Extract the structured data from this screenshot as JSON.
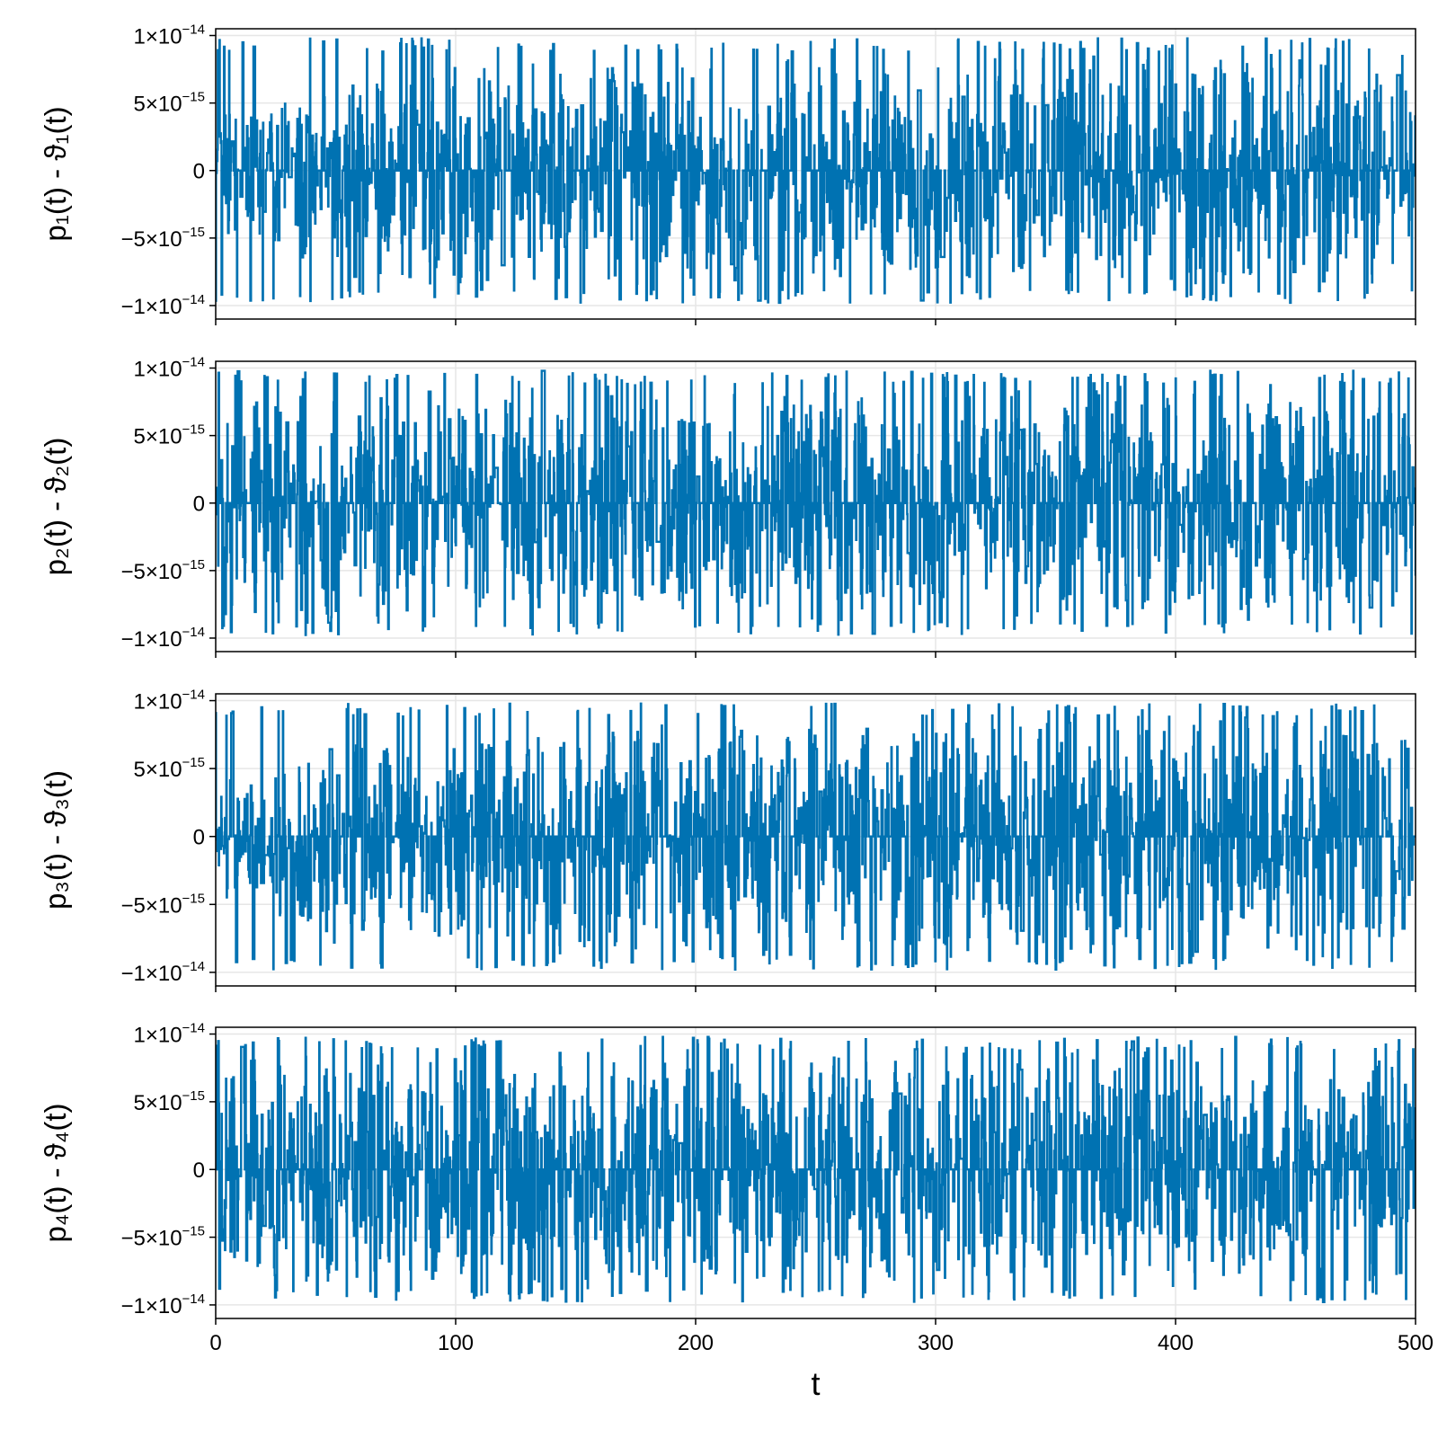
{
  "colors": {
    "series": "#0072b2",
    "grid": "#e6e6e6",
    "frame": "#000000"
  },
  "chart_data": [
    {
      "type": "line",
      "xlabel": "",
      "ylabel": "p₁(t) - ϑ₁(t)",
      "xlim": [
        0,
        500
      ],
      "ylim": [
        -1.1e-14,
        1.05e-14
      ],
      "x_ticks": [
        0,
        100,
        200,
        300,
        400,
        500
      ],
      "x_tick_labels": [
        "",
        "",
        "",
        "",
        "",
        ""
      ],
      "y_ticks": [
        -1e-14,
        -5e-15,
        0,
        5e-15,
        1e-14
      ],
      "y_tick_labels": [
        {
          "mantissa": "−1×10",
          "exp": "−14"
        },
        {
          "mantissa": "−5×10",
          "exp": "−15"
        },
        {
          "mantissa": "0",
          "exp": ""
        },
        {
          "mantissa": "5×10",
          "exp": "−15"
        },
        {
          "mantissa": "1×10",
          "exp": "−14"
        }
      ],
      "grid": true,
      "series": [
        {
          "seed": 11,
          "envelope": [
            [
              0,
              0.42,
              0.48
            ],
            [
              50,
              0.68,
              0.8
            ],
            [
              100,
              0.8,
              0.86
            ],
            [
              200,
              0.84,
              0.86
            ],
            [
              300,
              0.86,
              0.86
            ],
            [
              400,
              0.86,
              0.86
            ],
            [
              500,
              0.9,
              0.86
            ]
          ]
        }
      ]
    },
    {
      "type": "line",
      "xlabel": "",
      "ylabel": "p₂(t) - ϑ₂(t)",
      "xlim": [
        0,
        500
      ],
      "ylim": [
        -1.1e-14,
        1.05e-14
      ],
      "x_ticks": [
        0,
        100,
        200,
        300,
        400,
        500
      ],
      "x_tick_labels": [
        "",
        "",
        "",
        "",
        "",
        ""
      ],
      "y_ticks": [
        -1e-14,
        -5e-15,
        0,
        5e-15,
        1e-14
      ],
      "y_tick_labels": [
        {
          "mantissa": "−1×10",
          "exp": "−14"
        },
        {
          "mantissa": "−5×10",
          "exp": "−15"
        },
        {
          "mantissa": "0",
          "exp": ""
        },
        {
          "mantissa": "5×10",
          "exp": "−15"
        },
        {
          "mantissa": "1×10",
          "exp": "−14"
        }
      ],
      "grid": true,
      "series": [
        {
          "seed": 23,
          "envelope": [
            [
              0,
              0.8,
              0.85
            ],
            [
              50,
              0.86,
              0.9
            ],
            [
              100,
              0.86,
              0.9
            ],
            [
              200,
              0.9,
              0.9
            ],
            [
              300,
              0.88,
              0.88
            ],
            [
              400,
              0.9,
              0.88
            ],
            [
              500,
              0.9,
              0.9
            ]
          ]
        }
      ]
    },
    {
      "type": "line",
      "xlabel": "",
      "ylabel": "p₃(t) - ϑ₃(t)",
      "xlim": [
        0,
        500
      ],
      "ylim": [
        -1.1e-14,
        1.05e-14
      ],
      "x_ticks": [
        0,
        100,
        200,
        300,
        400,
        500
      ],
      "x_tick_labels": [
        "",
        "",
        "",
        "",
        "",
        ""
      ],
      "y_ticks": [
        -1e-14,
        -5e-15,
        0,
        5e-15,
        1e-14
      ],
      "y_tick_labels": [
        {
          "mantissa": "−1×10",
          "exp": "−14"
        },
        {
          "mantissa": "−5×10",
          "exp": "−15"
        },
        {
          "mantissa": "0",
          "exp": ""
        },
        {
          "mantissa": "5×10",
          "exp": "−15"
        },
        {
          "mantissa": "1×10",
          "exp": "−14"
        }
      ],
      "grid": true,
      "series": [
        {
          "seed": 37,
          "envelope": [
            [
              0,
              0.42,
              0.45
            ],
            [
              50,
              0.68,
              0.84
            ],
            [
              100,
              0.86,
              0.88
            ],
            [
              200,
              0.86,
              0.88
            ],
            [
              300,
              0.9,
              0.9
            ],
            [
              400,
              0.9,
              0.9
            ],
            [
              500,
              0.86,
              0.86
            ]
          ]
        }
      ]
    },
    {
      "type": "line",
      "xlabel": "t",
      "ylabel": "p₄(t) - ϑ₄(t)",
      "xlim": [
        0,
        500
      ],
      "ylim": [
        -1.1e-14,
        1.05e-14
      ],
      "x_ticks": [
        0,
        100,
        200,
        300,
        400,
        500
      ],
      "x_tick_labels": [
        "0",
        "100",
        "200",
        "300",
        "400",
        "500"
      ],
      "y_ticks": [
        -1e-14,
        -5e-15,
        0,
        5e-15,
        1e-14
      ],
      "y_tick_labels": [
        {
          "mantissa": "−1×10",
          "exp": "−14"
        },
        {
          "mantissa": "−5×10",
          "exp": "−15"
        },
        {
          "mantissa": "0",
          "exp": ""
        },
        {
          "mantissa": "5×10",
          "exp": "−15"
        },
        {
          "mantissa": "1×10",
          "exp": "−14"
        }
      ],
      "grid": true,
      "series": [
        {
          "seed": 53,
          "envelope": [
            [
              0,
              0.86,
              0.9
            ],
            [
              50,
              0.86,
              0.92
            ],
            [
              100,
              0.9,
              0.92
            ],
            [
              200,
              0.92,
              0.92
            ],
            [
              300,
              0.92,
              0.92
            ],
            [
              400,
              0.92,
              0.92
            ],
            [
              500,
              0.9,
              0.9
            ]
          ]
        }
      ]
    }
  ]
}
